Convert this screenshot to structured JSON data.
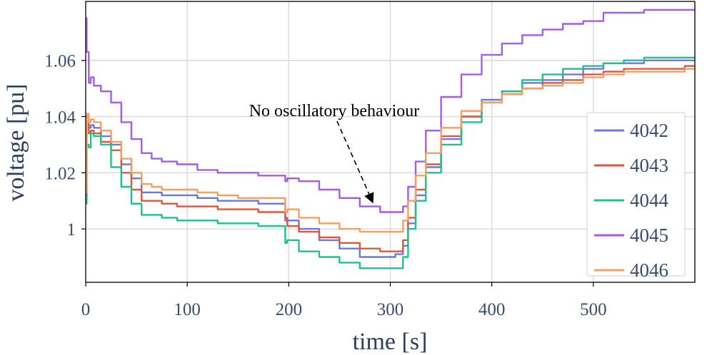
{
  "chart_data": {
    "type": "line",
    "title": "",
    "xlabel": "time [s]",
    "ylabel": "voltage [pu]",
    "xlim": [
      0,
      600
    ],
    "ylim": [
      0.981,
      1.081
    ],
    "xticks": [
      0,
      100,
      200,
      300,
      400,
      500
    ],
    "xtick_labels": [
      "0",
      "100",
      "200",
      "300",
      "400",
      "500"
    ],
    "yticks": [
      1.0,
      1.02,
      1.04,
      1.06
    ],
    "ytick_labels": [
      "1",
      "1.02",
      "1.04",
      "1.06"
    ],
    "grid": true,
    "legend_position": "right",
    "annotation": {
      "text": "No oscillatory behaviour",
      "x": 282,
      "y": 1.0095
    },
    "series": [
      {
        "name": "4042",
        "color": "#6b78e3",
        "x": [
          0,
          2,
          4,
          6,
          10,
          20,
          30,
          40,
          50,
          60,
          70,
          80,
          100,
          120,
          140,
          160,
          180,
          196,
          197,
          200,
          220,
          240,
          260,
          280,
          300,
          310,
          315,
          320,
          330,
          340,
          360,
          380,
          400,
          420,
          440,
          460,
          480,
          500,
          520,
          540,
          560,
          580,
          600
        ],
        "y": [
          1.012,
          1.04,
          1.036,
          1.037,
          1.036,
          1.033,
          1.03,
          1.023,
          1.018,
          1.013,
          1.013,
          1.012,
          1.012,
          1.011,
          1.01,
          1.01,
          1.009,
          1.009,
          1.004,
          1.003,
          1.0,
          0.996,
          0.993,
          0.99,
          0.99,
          0.991,
          0.994,
          1.002,
          1.012,
          1.022,
          1.032,
          1.04,
          1.046,
          1.049,
          1.052,
          1.053,
          1.055,
          1.057,
          1.059,
          1.059,
          1.06,
          1.06,
          1.06
        ]
      },
      {
        "name": "4043",
        "color": "#e1573c",
        "x": [
          0,
          2,
          4,
          6,
          10,
          20,
          30,
          40,
          50,
          60,
          70,
          80,
          100,
          120,
          140,
          160,
          180,
          196,
          197,
          200,
          220,
          240,
          260,
          280,
          300,
          310,
          315,
          320,
          330,
          340,
          360,
          380,
          400,
          420,
          440,
          460,
          480,
          500,
          520,
          540,
          560,
          580,
          600
        ],
        "y": [
          1.011,
          1.04,
          1.034,
          1.035,
          1.034,
          1.031,
          1.028,
          1.02,
          1.014,
          1.01,
          1.01,
          1.009,
          1.008,
          1.008,
          1.007,
          1.007,
          1.006,
          1.006,
          1.003,
          1.001,
          0.999,
          0.997,
          0.995,
          0.993,
          0.992,
          0.992,
          0.996,
          1.004,
          1.014,
          1.023,
          1.033,
          1.04,
          1.045,
          1.048,
          1.05,
          1.052,
          1.053,
          1.055,
          1.056,
          1.057,
          1.057,
          1.057,
          1.058
        ]
      },
      {
        "name": "4044",
        "color": "#1fc191",
        "x": [
          0,
          2,
          4,
          6,
          10,
          20,
          30,
          40,
          50,
          60,
          70,
          80,
          100,
          120,
          140,
          160,
          180,
          196,
          197,
          200,
          220,
          240,
          260,
          280,
          300,
          310,
          315,
          320,
          330,
          340,
          360,
          380,
          400,
          420,
          440,
          460,
          480,
          500,
          520,
          540,
          560,
          580,
          600
        ],
        "y": [
          1.009,
          1.03,
          1.029,
          1.034,
          1.033,
          1.03,
          1.022,
          1.015,
          1.009,
          1.005,
          1.005,
          1.004,
          1.003,
          1.003,
          1.002,
          1.002,
          1.001,
          1.001,
          0.995,
          0.996,
          0.992,
          0.99,
          0.988,
          0.986,
          0.986,
          0.986,
          0.99,
          1.0,
          1.01,
          1.02,
          1.03,
          1.038,
          1.045,
          1.049,
          1.053,
          1.055,
          1.057,
          1.058,
          1.059,
          1.06,
          1.061,
          1.061,
          1.061
        ]
      },
      {
        "name": "4045",
        "color": "#a45de9",
        "x": [
          0,
          2,
          4,
          6,
          10,
          20,
          30,
          40,
          50,
          60,
          70,
          80,
          100,
          120,
          140,
          160,
          180,
          196,
          197,
          200,
          220,
          240,
          260,
          280,
          300,
          310,
          315,
          320,
          330,
          340,
          360,
          380,
          400,
          420,
          440,
          460,
          480,
          500,
          520,
          540,
          560,
          580,
          600
        ],
        "y": [
          1.075,
          1.063,
          1.052,
          1.054,
          1.051,
          1.049,
          1.045,
          1.038,
          1.032,
          1.027,
          1.025,
          1.024,
          1.023,
          1.021,
          1.02,
          1.02,
          1.019,
          1.019,
          1.017,
          1.018,
          1.017,
          1.014,
          1.011,
          1.008,
          1.006,
          1.006,
          1.008,
          1.015,
          1.024,
          1.035,
          1.047,
          1.055,
          1.062,
          1.066,
          1.069,
          1.071,
          1.073,
          1.074,
          1.077,
          1.077,
          1.078,
          1.078,
          1.078
        ]
      },
      {
        "name": "4046",
        "color": "#f5a061",
        "x": [
          0,
          2,
          4,
          6,
          10,
          20,
          30,
          40,
          50,
          60,
          70,
          80,
          100,
          120,
          140,
          160,
          180,
          196,
          197,
          200,
          220,
          240,
          260,
          280,
          300,
          310,
          315,
          320,
          330,
          340,
          360,
          380,
          400,
          420,
          440,
          460,
          480,
          500,
          520,
          540,
          560,
          580,
          600
        ],
        "y": [
          1.013,
          1.041,
          1.038,
          1.039,
          1.038,
          1.035,
          1.031,
          1.025,
          1.02,
          1.016,
          1.015,
          1.014,
          1.014,
          1.013,
          1.012,
          1.011,
          1.011,
          1.011,
          1.006,
          1.007,
          1.004,
          1.002,
          1.0,
          0.999,
          0.999,
          0.999,
          1.003,
          1.01,
          1.019,
          1.027,
          1.036,
          1.042,
          1.045,
          1.048,
          1.05,
          1.051,
          1.052,
          1.054,
          1.055,
          1.056,
          1.056,
          1.056,
          1.057
        ]
      }
    ]
  }
}
